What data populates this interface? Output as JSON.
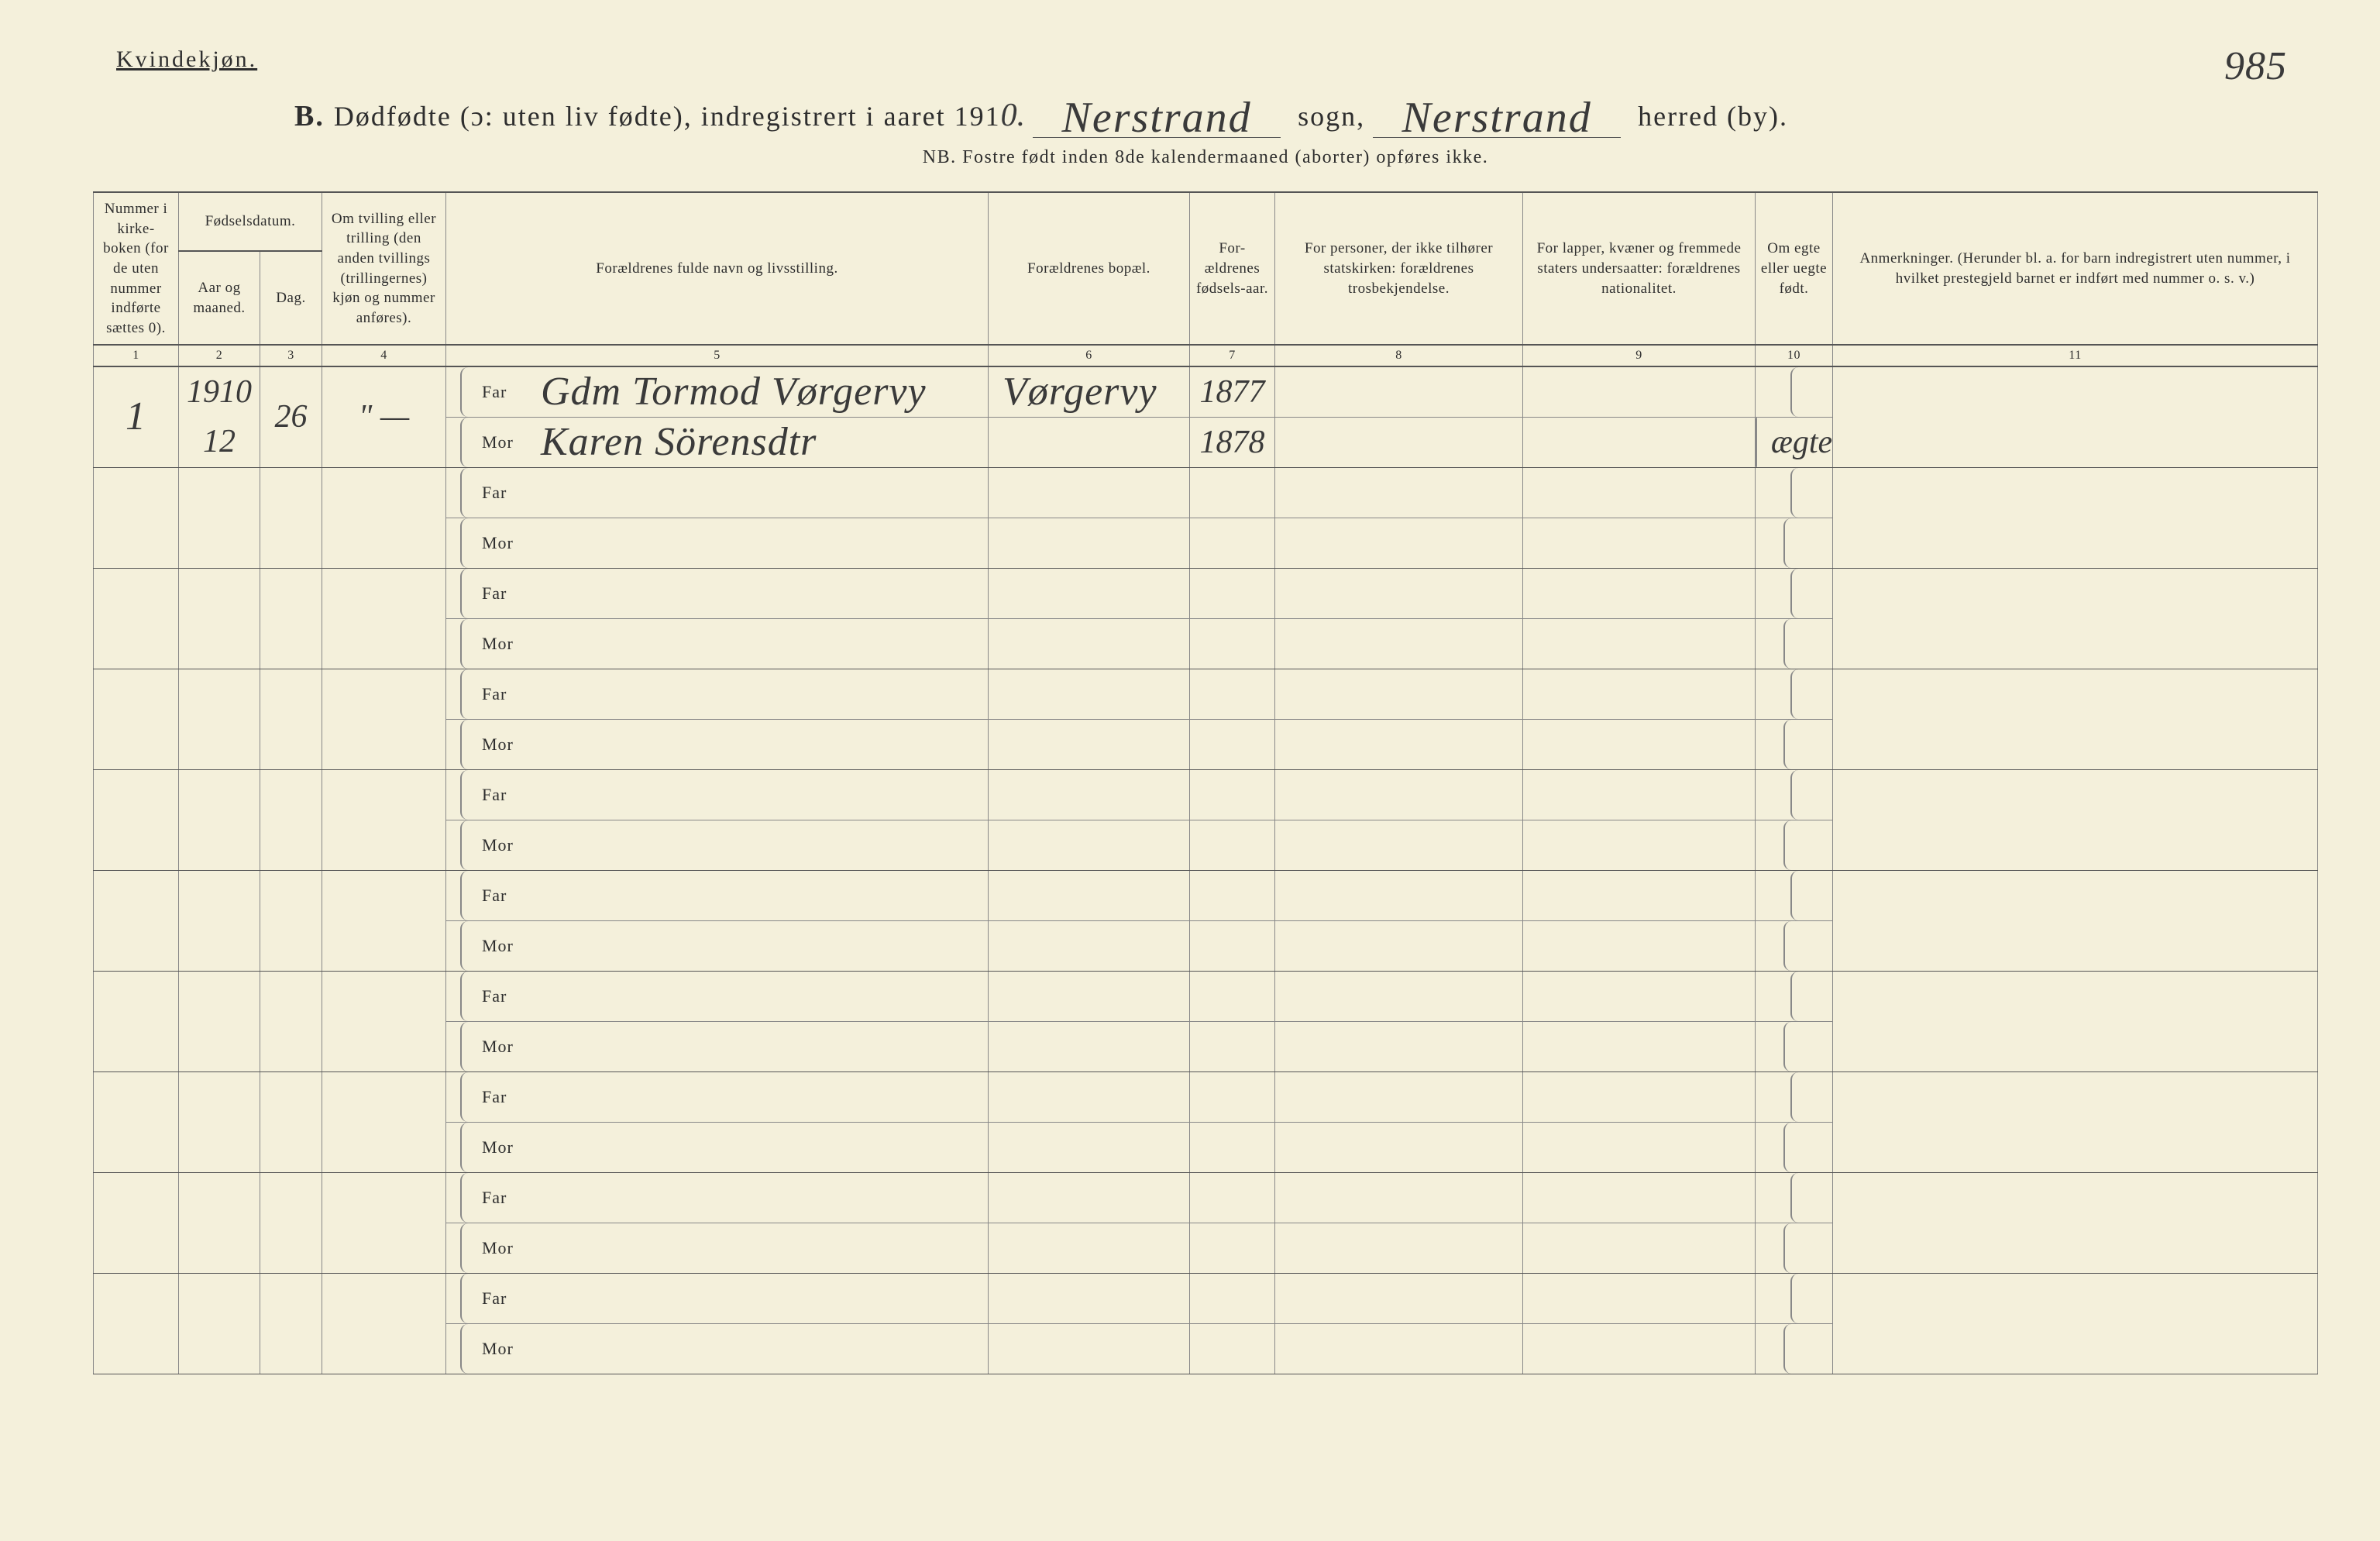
{
  "gender_label": "Kvindekjøn.",
  "page_number_hw": "985",
  "title": {
    "letter": "B.",
    "main": "Dødfødte (ɔ: uten liv fødte), indregistrert i aaret 191",
    "year_suffix_hw": "0.",
    "sogn_hw": "Nerstrand",
    "sogn_label": "sogn,",
    "herred_hw": "Nerstrand",
    "herred_label": "herred (by)."
  },
  "subtitle": "NB.  Fostre født inden 8de kalendermaaned (aborter) opføres ikke.",
  "columns": {
    "c1": "Nummer i kirke-boken (for de uten nummer indførte sættes 0).",
    "c2_group": "Fødselsdatum.",
    "c2": "Aar og maaned.",
    "c3": "Dag.",
    "c4": "Om tvilling eller trilling (den anden tvillings (trillingernes) kjøn og nummer anføres).",
    "c5": "Forældrenes fulde navn og livsstilling.",
    "c6": "Forældrenes bopæl.",
    "c7": "For-ældrenes fødsels-aar.",
    "c8": "For personer, der ikke tilhører statskirken: forældrenes trosbekjendelse.",
    "c9": "For lapper, kvæner og fremmede staters undersaatter: forældrenes nationalitet.",
    "c10": "Om egte eller uegte født.",
    "c11": "Anmerkninger.\n(Herunder bl. a. for barn indregistrert uten nummer, i hvilket prestegjeld barnet er indført med nummer o. s. v.)"
  },
  "colnums": [
    "1",
    "2",
    "3",
    "4",
    "5",
    "6",
    "7",
    "8",
    "9",
    "10",
    "11"
  ],
  "parent_labels": {
    "father": "Far",
    "mother": "Mor"
  },
  "rows": [
    {
      "num": "1",
      "year": "1910",
      "month": "12",
      "day": "26",
      "twin": "\" —",
      "father_name": "Gdm Tormod Vørgervy",
      "mother_name": "Karen Sörensdtr",
      "residence": "Vørgervy",
      "father_birth": "1877",
      "mother_birth": "1878",
      "religion": "",
      "nationality": "",
      "legit": "ægte",
      "remarks": ""
    },
    {},
    {},
    {},
    {},
    {},
    {},
    {},
    {},
    {}
  ]
}
